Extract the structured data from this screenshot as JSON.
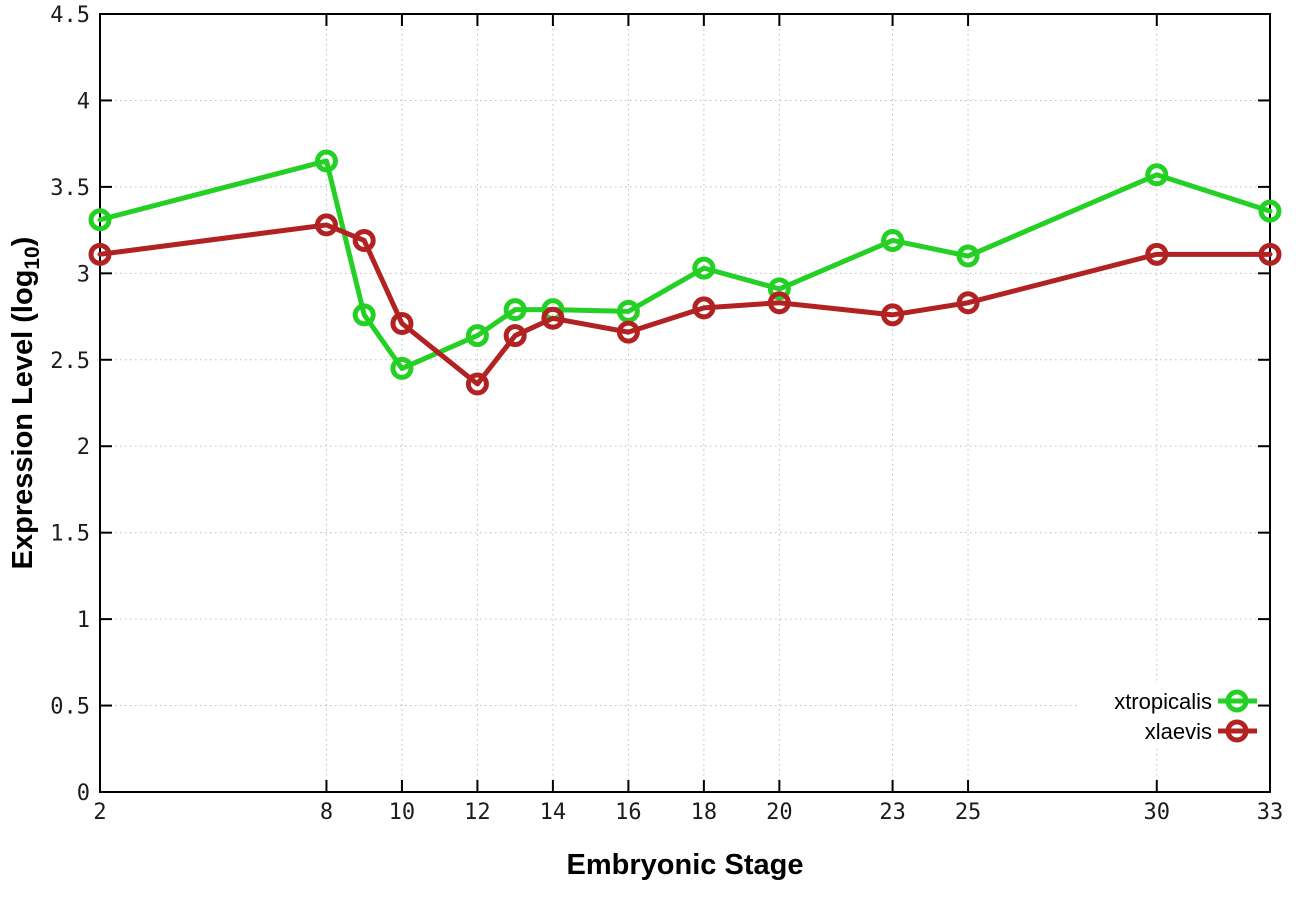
{
  "chart_data": {
    "type": "line",
    "title": "",
    "xlabel": "Embryonic Stage",
    "ylabel": "Expression Level (log10)",
    "ylabel_main": "Expression Level (log",
    "ylabel_sub": "10",
    "ylabel_close": ")",
    "x": [
      2,
      8,
      9,
      10,
      12,
      13,
      14,
      16,
      18,
      20,
      23,
      25,
      30,
      33
    ],
    "series": [
      {
        "name": "xtropicalis",
        "color": "#24d024",
        "values": [
          3.31,
          3.65,
          2.76,
          2.45,
          2.64,
          2.79,
          2.79,
          2.78,
          3.03,
          2.91,
          3.19,
          3.1,
          3.57,
          3.36
        ]
      },
      {
        "name": "xlaevis",
        "color": "#b22222",
        "values": [
          3.11,
          3.28,
          3.19,
          2.71,
          2.36,
          2.64,
          2.74,
          2.66,
          2.8,
          2.83,
          2.76,
          2.83,
          3.11,
          3.11
        ]
      }
    ],
    "xlim": [
      2,
      33
    ],
    "ylim": [
      0,
      4.5
    ],
    "xticks": {
      "values": [
        2,
        8,
        10,
        12,
        14,
        16,
        18,
        20,
        23,
        25,
        30,
        33
      ],
      "labels": [
        "2",
        "8",
        "10",
        "12",
        "14",
        "16",
        "18",
        "20",
        "23",
        "25",
        "30",
        "33"
      ]
    },
    "yticks": {
      "values": [
        0,
        0.5,
        1,
        1.5,
        2,
        2.5,
        3,
        3.5,
        4,
        4.5
      ],
      "labels": [
        "0",
        "0.5",
        "1",
        "1.5",
        "2",
        "2.5",
        "3",
        "3.5",
        "4",
        "4.5"
      ]
    },
    "grid": true,
    "marker": "open-circle",
    "legend_position": "bottom-right",
    "legend_entries": [
      "xtropicalis",
      "xlaevis"
    ],
    "colors": {
      "grid": "#bdbdbd",
      "border": "#000000",
      "tick_label": "#1c1c1c"
    }
  }
}
